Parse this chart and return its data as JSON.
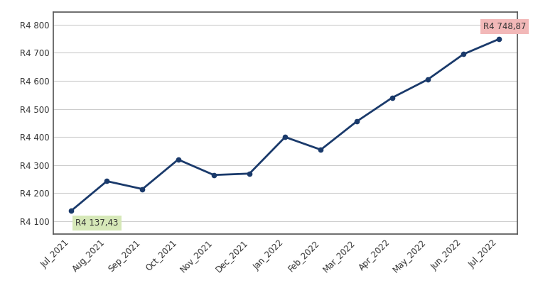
{
  "labels": [
    "Jul_2021",
    "Aug_2021",
    "Sep_2021",
    "Oct_2021",
    "Nov_2021",
    "Dec_2021",
    "Jan_2022",
    "Feb_2022",
    "Mar_2022",
    "Apr_2022",
    "May_2022",
    "Jun_2022",
    "Jul_2022"
  ],
  "values": [
    4137.43,
    4243.0,
    4215.0,
    4320.0,
    4265.0,
    4270.0,
    4400.0,
    4355.0,
    4455.0,
    4540.0,
    4605.0,
    4695.0,
    4748.87
  ],
  "line_color": "#1a3a6b",
  "marker_color": "#1a3a6b",
  "background_color": "#ffffff",
  "grid_color": "#cccccc",
  "yticks": [
    4100,
    4200,
    4300,
    4400,
    4500,
    4600,
    4700,
    4800
  ],
  "ytick_labels": [
    "R4 100",
    "R4 200",
    "R4 300",
    "R4 400",
    "R4 500",
    "R4 600",
    "R4 700",
    "R4 800"
  ],
  "ylim": [
    4055,
    4845
  ],
  "xlim_left": -0.5,
  "xlim_right": 12.5,
  "first_label": "R4 137,43",
  "last_label": "R4 748,87",
  "first_label_bg": "#d6e8b8",
  "last_label_bg": "#f2b8b8",
  "annotation_fontsize": 8.5,
  "tick_fontsize": 8.5,
  "border_color": "#555555",
  "line_width": 2.0,
  "marker_size": 4.5
}
